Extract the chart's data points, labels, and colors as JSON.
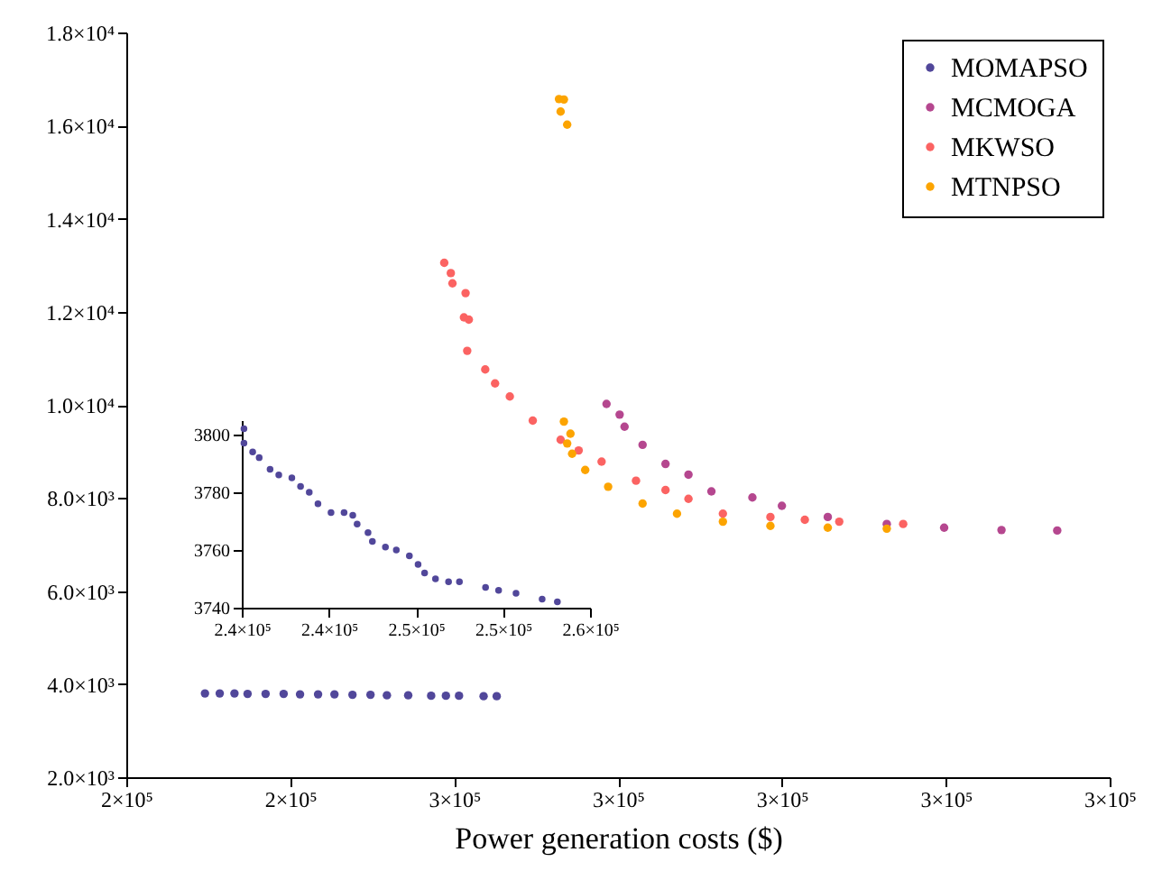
{
  "chart_data": [
    {
      "type": "scatter",
      "xlabel": "Power generation costs ($)",
      "legend": "top right",
      "marker": "circle",
      "xlim": [
        235000,
        295000
      ],
      "xticks": [
        {
          "value": 235000,
          "label": "2×10⁵"
        },
        {
          "value": 245000,
          "label": "2×10⁵"
        },
        {
          "value": 255000,
          "label": "3×10⁵"
        },
        {
          "value": 265000,
          "label": "3×10⁵"
        },
        {
          "value": 275000,
          "label": "3×10⁵"
        },
        {
          "value": 285000,
          "label": "3×10⁵"
        },
        {
          "value": 295000,
          "label": "3×10⁵"
        }
      ],
      "ylim": [
        2000,
        18000
      ],
      "yticks": [
        {
          "value": 2000,
          "label": "2.0×10³"
        },
        {
          "value": 4000,
          "label": "4.0×10³"
        },
        {
          "value": 6000,
          "label": "6.0×10³"
        },
        {
          "value": 8000,
          "label": "8.0×10³"
        },
        {
          "value": 10000,
          "label": "1.0×10⁴"
        },
        {
          "value": 12000,
          "label": "1.2×10⁴"
        },
        {
          "value": 14000,
          "label": "1.4×10⁴"
        },
        {
          "value": 16000,
          "label": "1.6×10⁴"
        },
        {
          "value": 18000,
          "label": "1.8×10⁴"
        }
      ],
      "series": [
        {
          "name": "MOMAPSO",
          "color": "#51479a",
          "x": [
            239800,
            240700,
            241600,
            242400,
            243500,
            244600,
            245600,
            246700,
            247700,
            248800,
            249900,
            250900,
            252200,
            253600,
            254500,
            255300,
            256800,
            257600
          ],
          "values": [
            3800,
            3800,
            3800,
            3790,
            3790,
            3790,
            3780,
            3780,
            3780,
            3770,
            3770,
            3760,
            3760,
            3750,
            3750,
            3750,
            3740,
            3740
          ]
        },
        {
          "name": "MCMOGA",
          "color": "#b5478f",
          "x": [
            264300,
            265100,
            265400,
            266500,
            267900,
            269300,
            270700,
            273200,
            275000,
            277800,
            281400,
            284900,
            288400,
            291800
          ],
          "values": [
            10020,
            9790,
            9530,
            9140,
            8730,
            8500,
            8140,
            8010,
            7830,
            7590,
            7440,
            7360,
            7310,
            7300
          ]
        },
        {
          "name": "MKWSO",
          "color": "#fb6362",
          "x": [
            254400,
            254800,
            254900,
            255700,
            255600,
            255900,
            255800,
            256900,
            257500,
            258400,
            259800,
            261500,
            262600,
            264000,
            266100,
            267900,
            269300,
            271400,
            274300,
            276400,
            278500,
            282400
          ],
          "values": [
            13050,
            12830,
            12610,
            12400,
            11880,
            11830,
            11160,
            10760,
            10460,
            10180,
            9660,
            9250,
            9020,
            8780,
            8370,
            8170,
            7980,
            7660,
            7590,
            7530,
            7490,
            7440
          ]
        },
        {
          "name": "MTNPSO",
          "color": "#fca400",
          "x": [
            261400,
            261700,
            261500,
            261900,
            261700,
            262100,
            261900,
            262200,
            263000,
            264400,
            266500,
            268600,
            271400,
            274300,
            277800,
            281400
          ],
          "values": [
            16570,
            16560,
            16300,
            16020,
            9640,
            9380,
            9170,
            8950,
            8600,
            8240,
            7880,
            7660,
            7490,
            7400,
            7360,
            7340
          ]
        }
      ]
    },
    {
      "type": "scatter",
      "marker": "circle",
      "xlim": [
        240000,
        256000
      ],
      "xticks": [
        {
          "value": 240000,
          "label": "2.4×10⁵"
        },
        {
          "value": 244000,
          "label": "2.4×10⁵"
        },
        {
          "value": 248000,
          "label": "2.5×10⁵"
        },
        {
          "value": 252000,
          "label": "2.5×10⁵"
        },
        {
          "value": 256000,
          "label": "2.6×10⁵"
        }
      ],
      "ylim": [
        3740,
        3805
      ],
      "yticks": [
        3740,
        3760,
        3780,
        3800
      ],
      "series": [
        {
          "color": "#51479a",
          "x": [
            240100,
            240100,
            240500,
            240800,
            241300,
            241700,
            242300,
            242700,
            243100,
            243500,
            244100,
            244700,
            245100,
            245300,
            245800,
            246000,
            246600,
            247100,
            247700,
            248100,
            248400,
            248900,
            249500,
            250000,
            251200,
            251800,
            252600,
            253800,
            254500
          ],
          "values": [
            3802,
            3797,
            3794,
            3792,
            3788,
            3786,
            3785,
            3782,
            3780,
            3776,
            3773,
            3773,
            3772,
            3769,
            3766,
            3763,
            3761,
            3760,
            3758,
            3755,
            3752,
            3750,
            3749,
            3749,
            3747,
            3746,
            3745,
            3743,
            3742
          ]
        }
      ]
    }
  ]
}
